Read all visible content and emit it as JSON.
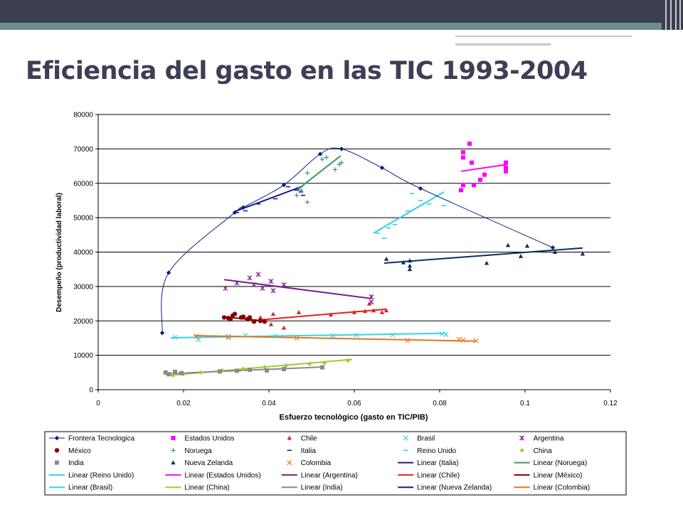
{
  "slide": {
    "title": "Eficiencia del gasto en las TIC 1993-2004"
  },
  "colors": {
    "Frontera Tecnologica": "#0b1f85",
    "Estados Unidos": "#ff00ff",
    "Chile": "#e32020",
    "Brasil": "#35d4e8",
    "Argentina": "#7a1f90",
    "México": "#8b0000",
    "Noruega": "#2e8b76",
    "Italia": "#1b1b8a",
    "Reino Unido": "#30d0f0",
    "China": "#9acd32",
    "India": "#8a8a8a",
    "Nueva Zelanda": "#0f2f5a",
    "Colombia": "#e8741a"
  },
  "chart_data": {
    "type": "scatter",
    "xlabel": "Esfuerzo tecnológico (gasto en TIC/PIB)",
    "ylabel": "Desempeño  (productividad laboral)",
    "xlim": [
      0,
      0.12
    ],
    "ylim": [
      0,
      80000
    ],
    "xticks": [
      "0",
      "0.02",
      "0.04",
      "0.06",
      "0.08",
      "0.1",
      "0.12"
    ],
    "yticks": [
      "0",
      "10000",
      "20000",
      "30000",
      "40000",
      "50000",
      "60000",
      "70000",
      "80000"
    ],
    "grid": "horizontal",
    "legend_position": "bottom",
    "series": [
      {
        "name": "Frontera Tecnologica",
        "color": "#0b1f85",
        "marker": "diamond",
        "curve": true,
        "points": [
          [
            0.015,
            16500
          ],
          [
            0.0165,
            34000
          ],
          [
            0.032,
            51500
          ],
          [
            0.034,
            53000
          ],
          [
            0.0435,
            59500
          ],
          [
            0.052,
            68500
          ],
          [
            0.057,
            70000
          ],
          [
            0.0665,
            64500
          ],
          [
            0.0755,
            58500
          ],
          [
            0.1065,
            41300
          ]
        ]
      },
      {
        "name": "Estados Unidos",
        "color": "#ff00ff",
        "marker": "square",
        "points": [
          [
            0.085,
            58000
          ],
          [
            0.0855,
            59500
          ],
          [
            0.0855,
            69000
          ],
          [
            0.0855,
            67500
          ],
          [
            0.087,
            71500
          ],
          [
            0.0875,
            66000
          ],
          [
            0.088,
            59500
          ],
          [
            0.0895,
            61000
          ],
          [
            0.0905,
            62500
          ],
          [
            0.0955,
            66000
          ],
          [
            0.0955,
            64500
          ],
          [
            0.0955,
            63500
          ]
        ]
      },
      {
        "name": "Chile",
        "color": "#e32020",
        "marker": "triangle",
        "points": [
          [
            0.038,
            21000
          ],
          [
            0.0405,
            19000
          ],
          [
            0.041,
            22000
          ],
          [
            0.0435,
            18000
          ],
          [
            0.047,
            22500
          ],
          [
            0.0545,
            21800
          ],
          [
            0.06,
            22500
          ],
          [
            0.0625,
            22800
          ],
          [
            0.0645,
            23000
          ],
          [
            0.0665,
            22500
          ],
          [
            0.0675,
            23000
          ],
          [
            0.0635,
            25000
          ]
        ]
      },
      {
        "name": "Brasil",
        "color": "#35d4e8",
        "marker": "x",
        "points": [
          [
            0.018,
            15200
          ],
          [
            0.0235,
            14500
          ],
          [
            0.0305,
            15500
          ],
          [
            0.0345,
            15800
          ],
          [
            0.0415,
            15600
          ],
          [
            0.055,
            15700
          ],
          [
            0.0605,
            15900
          ],
          [
            0.069,
            15900
          ],
          [
            0.0805,
            16200
          ],
          [
            0.0815,
            16000
          ]
        ]
      },
      {
        "name": "Argentina",
        "color": "#7a1f90",
        "marker": "asterisk",
        "points": [
          [
            0.0298,
            29500
          ],
          [
            0.0325,
            31000
          ],
          [
            0.0355,
            32500
          ],
          [
            0.0365,
            30500
          ],
          [
            0.0375,
            33500
          ],
          [
            0.0385,
            29500
          ],
          [
            0.0405,
            31500
          ],
          [
            0.041,
            28800
          ],
          [
            0.0435,
            30500
          ],
          [
            0.064,
            25500
          ],
          [
            0.064,
            27000
          ]
        ]
      },
      {
        "name": "México",
        "color": "#8b0000",
        "marker": "dot",
        "points": [
          [
            0.0295,
            21000
          ],
          [
            0.0305,
            20800
          ],
          [
            0.031,
            20500
          ],
          [
            0.0315,
            21500
          ],
          [
            0.032,
            22000
          ],
          [
            0.0335,
            21000
          ],
          [
            0.034,
            21200
          ],
          [
            0.035,
            20500
          ],
          [
            0.0355,
            21000
          ],
          [
            0.0365,
            19800
          ],
          [
            0.038,
            20000
          ],
          [
            0.039,
            19800
          ]
        ]
      },
      {
        "name": "Noruega",
        "color": "#2e8b76",
        "marker": "plus",
        "points": [
          [
            0.0465,
            56500
          ],
          [
            0.0475,
            58000
          ],
          [
            0.049,
            54500
          ],
          [
            0.049,
            63000
          ],
          [
            0.0525,
            67000
          ],
          [
            0.0535,
            67500
          ],
          [
            0.0555,
            64000
          ],
          [
            0.0565,
            65500
          ],
          [
            0.057,
            66000
          ]
        ]
      },
      {
        "name": "Italia",
        "color": "#1b1b8a",
        "marker": "dash",
        "points": [
          [
            0.0325,
            51500
          ],
          [
            0.0345,
            52000
          ],
          [
            0.0375,
            54000
          ],
          [
            0.0415,
            55500
          ],
          [
            0.0445,
            59000
          ],
          [
            0.0465,
            58000
          ],
          [
            0.0475,
            57500
          ],
          [
            0.048,
            56500
          ]
        ]
      },
      {
        "name": "Reino Unido",
        "color": "#30d0f0",
        "marker": "dash",
        "points": [
          [
            0.0655,
            45500
          ],
          [
            0.067,
            44000
          ],
          [
            0.068,
            47000
          ],
          [
            0.0695,
            48000
          ],
          [
            0.0725,
            52000
          ],
          [
            0.0735,
            57000
          ],
          [
            0.0755,
            55000
          ],
          [
            0.0775,
            54000
          ],
          [
            0.081,
            53500
          ]
        ]
      },
      {
        "name": "China",
        "color": "#9acd32",
        "marker": "diamond",
        "points": [
          [
            0.0175,
            4200
          ],
          [
            0.02,
            4600
          ],
          [
            0.024,
            5000
          ],
          [
            0.029,
            5600
          ],
          [
            0.034,
            6000
          ],
          [
            0.039,
            6600
          ],
          [
            0.044,
            7000
          ],
          [
            0.0495,
            7500
          ],
          [
            0.053,
            7800
          ],
          [
            0.0585,
            8500
          ]
        ]
      },
      {
        "name": "India",
        "color": "#8a8a8a",
        "marker": "square",
        "points": [
          [
            0.0158,
            5000
          ],
          [
            0.0165,
            4500
          ],
          [
            0.018,
            5200
          ],
          [
            0.0195,
            4800
          ],
          [
            0.0285,
            5300
          ],
          [
            0.0325,
            5500
          ],
          [
            0.0355,
            5800
          ],
          [
            0.0395,
            5600
          ],
          [
            0.0435,
            6000
          ],
          [
            0.0525,
            6500
          ]
        ]
      },
      {
        "name": "Nueva Zelanda",
        "color": "#0f2f5a",
        "marker": "triangle",
        "points": [
          [
            0.0675,
            38000
          ],
          [
            0.0715,
            37000
          ],
          [
            0.073,
            37500
          ],
          [
            0.073,
            36000
          ],
          [
            0.073,
            35000
          ],
          [
            0.091,
            36800
          ],
          [
            0.096,
            42000
          ],
          [
            0.099,
            38800
          ],
          [
            0.1005,
            41800
          ],
          [
            0.107,
            40000
          ],
          [
            0.1135,
            39500
          ]
        ]
      },
      {
        "name": "Colombia",
        "color": "#e8741a",
        "marker": "x",
        "points": [
          [
            0.023,
            15500
          ],
          [
            0.0305,
            15200
          ],
          [
            0.0465,
            15000
          ],
          [
            0.0725,
            14300
          ],
          [
            0.0845,
            14600
          ],
          [
            0.0855,
            14400
          ],
          [
            0.0885,
            14200
          ]
        ]
      }
    ],
    "trendlines": [
      {
        "name": "Linear (Italia)",
        "color": "#1b1b8a",
        "x": [
          0.032,
          0.048
        ],
        "y": [
          51800,
          59200
        ]
      },
      {
        "name": "Linear (Noruega)",
        "color": "#3a9a6a",
        "x": [
          0.0465,
          0.0568
        ],
        "y": [
          58000,
          68000
        ]
      },
      {
        "name": "Linear (Reino Unido)",
        "color": "#30d0f0",
        "x": [
          0.0645,
          0.081
        ],
        "y": [
          45500,
          57500
        ]
      },
      {
        "name": "Linear (Estados Unidos)",
        "color": "#ff00ff",
        "x": [
          0.085,
          0.096
        ],
        "y": [
          63500,
          65500
        ]
      },
      {
        "name": "Linear (Argentina)",
        "color": "#7a1f90",
        "x": [
          0.0295,
          0.064
        ],
        "y": [
          32000,
          26500
        ]
      },
      {
        "name": "Linear (Chile)",
        "color": "#e32020",
        "x": [
          0.038,
          0.0675
        ],
        "y": [
          20300,
          23400
        ]
      },
      {
        "name": "Linear (Brasil)",
        "color": "#35d4e8",
        "x": [
          0.017,
          0.0815
        ],
        "y": [
          15100,
          16400
        ]
      },
      {
        "name": "Linear (México)",
        "color": "#8b0000",
        "x": [
          0.0295,
          0.0395
        ],
        "y": [
          21200,
          19900
        ]
      },
      {
        "name": "Linear (China)",
        "color": "#9acd32",
        "x": [
          0.017,
          0.0595
        ],
        "y": [
          4200,
          8800
        ]
      },
      {
        "name": "Linear (India)",
        "color": "#8a8a8a",
        "x": [
          0.0155,
          0.0525
        ],
        "y": [
          4600,
          6600
        ]
      },
      {
        "name": "Linear (Nueva Zelanda)",
        "color": "#0f2f5a",
        "x": [
          0.067,
          0.1135
        ],
        "y": [
          36800,
          41200
        ]
      },
      {
        "name": "Linear (Colombia)",
        "color": "#e8741a",
        "x": [
          0.0225,
          0.0885
        ],
        "y": [
          15700,
          14100
        ]
      }
    ],
    "legend": [
      "Frontera Tecnologica",
      "Estados Unidos",
      "Chile",
      "Brasil",
      "Argentina",
      "México",
      "Noruega",
      "Italia",
      "Reino Unido",
      "China",
      "India",
      "Nueva Zelanda",
      "Colombia",
      "Linear (Italia)",
      "Linear (Noruega)",
      "Linear (Reino Unido)",
      "Linear (Estados Unidos)",
      "Linear (Argentina)",
      "Linear (Chile)",
      "Linear (México)",
      "Linear (Brasil)",
      "Linear (China)",
      "Linear (India)",
      "Linear (Nueva Zelanda)",
      "Linear (Colombia)"
    ]
  }
}
